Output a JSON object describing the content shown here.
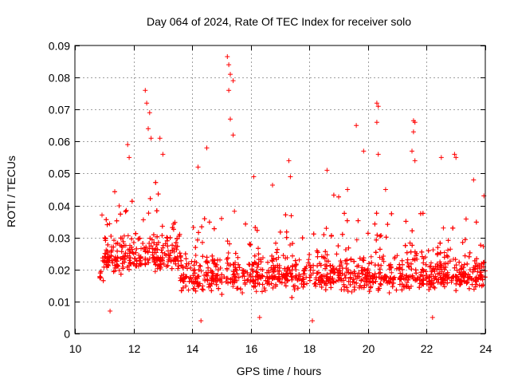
{
  "chart_data": {
    "type": "scatter",
    "title": "Day 064 of 2024, Rate Of TEC Index for receiver solo",
    "xlabel": "GPS time / hours",
    "ylabel": "ROTI / TECUs",
    "xlim": [
      10,
      24
    ],
    "ylim": [
      0,
      0.09
    ],
    "xticks": [
      "10",
      "12",
      "14",
      "16",
      "18",
      "20",
      "22",
      "24"
    ],
    "yticks": [
      "0",
      "0.01",
      "0.02",
      "0.03",
      "0.04",
      "0.05",
      "0.06",
      "0.07",
      "0.08",
      "0.09"
    ],
    "grid": true,
    "marker": "+",
    "color": "#ff0000",
    "series": [
      {
        "name": "ROTI",
        "x_range": [
          10.85,
          24.0
        ],
        "typical_range": [
          0.005,
          0.045
        ],
        "core_value": 0.018,
        "points": [
          [
            11.8,
            0.059
          ],
          [
            11.85,
            0.055
          ],
          [
            12.4,
            0.076
          ],
          [
            12.45,
            0.072
          ],
          [
            12.55,
            0.069
          ],
          [
            12.5,
            0.064
          ],
          [
            12.6,
            0.061
          ],
          [
            12.9,
            0.061
          ],
          [
            13.0,
            0.056
          ],
          [
            14.2,
            0.052
          ],
          [
            14.5,
            0.058
          ],
          [
            15.2,
            0.0865
          ],
          [
            15.25,
            0.084
          ],
          [
            15.3,
            0.081
          ],
          [
            15.4,
            0.079
          ],
          [
            15.25,
            0.076
          ],
          [
            15.3,
            0.067
          ],
          [
            15.4,
            0.062
          ],
          [
            16.1,
            0.049
          ],
          [
            17.3,
            0.054
          ],
          [
            17.35,
            0.049
          ],
          [
            18.6,
            0.051
          ],
          [
            19.3,
            0.045
          ],
          [
            19.6,
            0.065
          ],
          [
            19.85,
            0.057
          ],
          [
            20.3,
            0.072
          ],
          [
            20.35,
            0.071
          ],
          [
            20.3,
            0.066
          ],
          [
            20.35,
            0.056
          ],
          [
            20.6,
            0.045
          ],
          [
            21.55,
            0.0665
          ],
          [
            21.6,
            0.066
          ],
          [
            21.55,
            0.063
          ],
          [
            21.5,
            0.057
          ],
          [
            21.6,
            0.054
          ],
          [
            22.5,
            0.055
          ],
          [
            22.95,
            0.056
          ],
          [
            23.0,
            0.055
          ],
          [
            23.6,
            0.048
          ],
          [
            23.95,
            0.043
          ],
          [
            11.2,
            0.007
          ],
          [
            14.3,
            0.004
          ],
          [
            16.3,
            0.005
          ],
          [
            18.1,
            0.004
          ],
          [
            22.2,
            0.005
          ]
        ]
      }
    ]
  }
}
